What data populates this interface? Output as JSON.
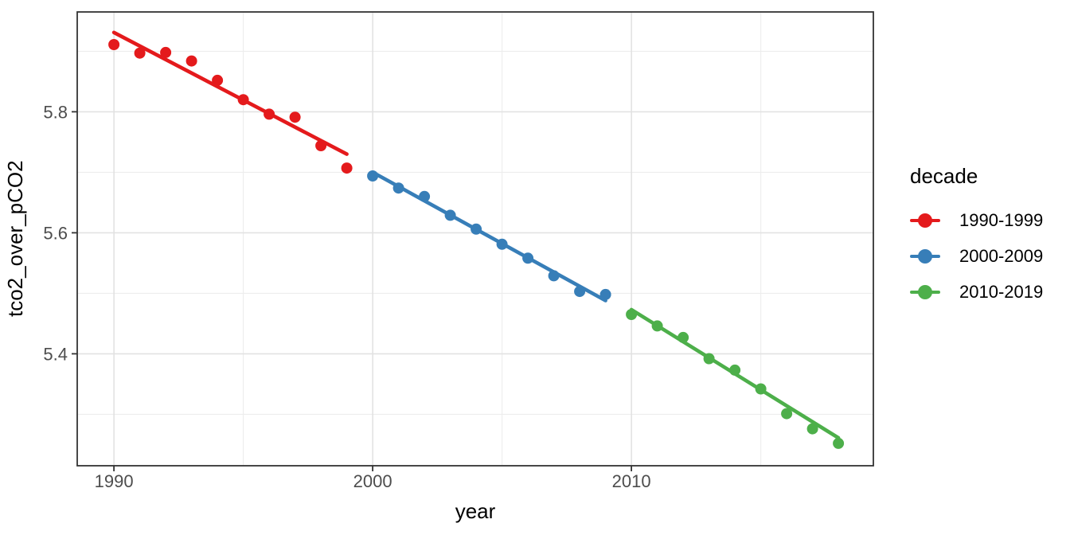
{
  "chart_data": {
    "type": "scatter",
    "subtype": "scatter-with-linear-trend-per-group",
    "title": "",
    "xlabel": "year",
    "ylabel": "tco2_over_pCO2",
    "legend": {
      "title": "decade",
      "position": "right"
    },
    "xlim": [
      1988.58,
      2019.35
    ],
    "ylim": [
      5.215,
      5.965
    ],
    "x_ticks": {
      "values": [
        1990,
        2000,
        2010
      ],
      "labels": [
        "1990",
        "2000",
        "2010"
      ]
    },
    "y_ticks": {
      "values": [
        5.8,
        5.6,
        5.4
      ],
      "labels": [
        "5.8",
        "5.6",
        "5.4"
      ]
    },
    "x_minor_gridlines": [
      1995,
      2005,
      2015
    ],
    "y_minor_gridlines": [
      5.9,
      5.7,
      5.5,
      5.3
    ],
    "grid": "major-and-minor",
    "panel_border_color": "#333333",
    "gridline_major_color": "#e2e2e2",
    "gridline_minor_color": "#ededed",
    "tick_label_color": "#4d4d4d",
    "series": [
      {
        "name": "1990-1999",
        "color": "#E41A1C",
        "x": [
          1990,
          1991,
          1992,
          1993,
          1994,
          1995,
          1996,
          1997,
          1998,
          1999
        ],
        "y": [
          5.911,
          5.897,
          5.898,
          5.884,
          5.852,
          5.82,
          5.796,
          5.791,
          5.744,
          5.707
        ],
        "trend": {
          "x1": 1990,
          "y1": 5.931,
          "x2": 1999,
          "y2": 5.73
        }
      },
      {
        "name": "2000-2009",
        "color": "#377EB8",
        "x": [
          2000,
          2001,
          2002,
          2003,
          2004,
          2005,
          2006,
          2007,
          2008,
          2009
        ],
        "y": [
          5.694,
          5.674,
          5.66,
          5.629,
          5.606,
          5.581,
          5.558,
          5.529,
          5.503,
          5.498
        ],
        "trend": {
          "x1": 2000,
          "y1": 5.7,
          "x2": 2009,
          "y2": 5.488
        }
      },
      {
        "name": "2010-2019",
        "color": "#4DAF4A",
        "x": [
          2010,
          2011,
          2012,
          2013,
          2014,
          2015,
          2016,
          2017,
          2018
        ],
        "y": [
          5.465,
          5.446,
          5.427,
          5.392,
          5.373,
          5.342,
          5.301,
          5.276,
          5.252
        ],
        "trend": {
          "x1": 2010,
          "y1": 5.473,
          "x2": 2018,
          "y2": 5.261
        }
      }
    ]
  }
}
